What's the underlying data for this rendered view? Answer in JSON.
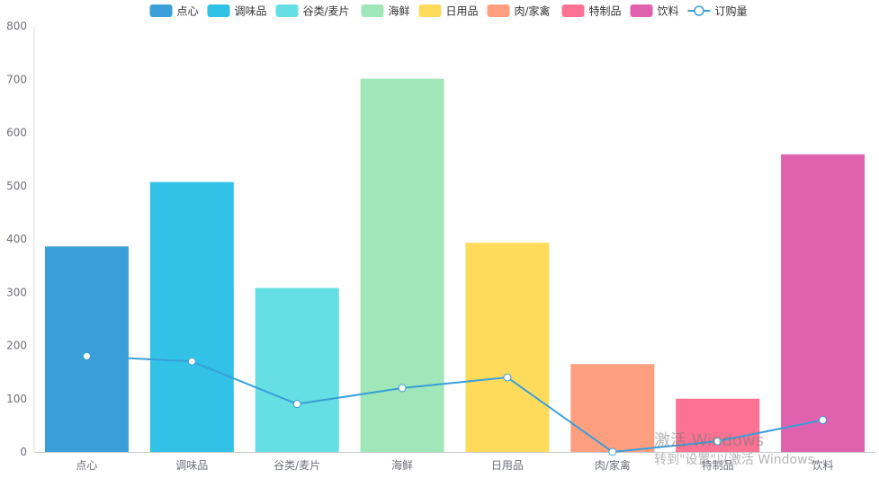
{
  "chart_data": {
    "type": "bar",
    "categories": [
      "点心",
      "调味品",
      "谷类/麦片",
      "海鲜",
      "日用品",
      "肉/家禽",
      "特制品",
      "饮料"
    ],
    "series": [
      {
        "type": "bar",
        "values": [
          386,
          507,
          308,
          701,
          393,
          165,
          100,
          559
        ]
      },
      {
        "type": "line",
        "name": "订购量",
        "values": [
          180,
          170,
          90,
          120,
          140,
          0,
          20,
          60
        ]
      }
    ],
    "legend": [
      "点心",
      "调味品",
      "谷类/麦片",
      "海鲜",
      "日用品",
      "肉/家禽",
      "特制品",
      "饮料",
      "订购量"
    ],
    "legend_position": "top-center",
    "bar_colors": [
      "#3a9fd8",
      "#32c2e8",
      "#65dfe3",
      "#9fe6b8",
      "#ffdb5c",
      "#ff9f7f",
      "#fb7293",
      "#e062ae"
    ],
    "line_color": "#3a9fd8",
    "ylim": [
      0,
      800
    ],
    "yticks": [
      0,
      100,
      200,
      300,
      400,
      500,
      600,
      700,
      800
    ],
    "grid": false,
    "title": "",
    "xlabel": "",
    "ylabel": ""
  },
  "watermark": {
    "line1": "激活 Windows",
    "line2": "转到\"设置\"以激活 Windows。"
  }
}
